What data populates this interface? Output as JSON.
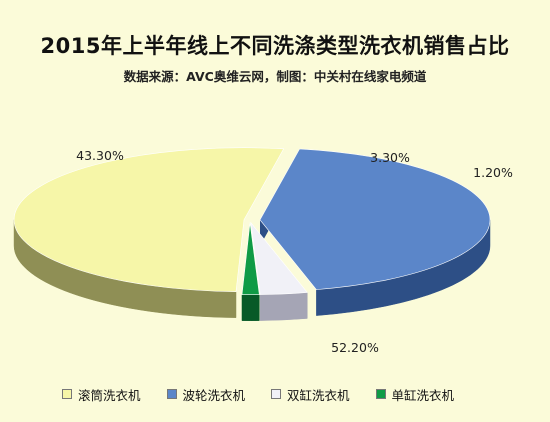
{
  "header": {
    "title": "2015年上半年线上不同洗涤类型洗衣机销售占比",
    "subtitle": "数据来源：AVC奥维云网，制图：中关村在线家电频道"
  },
  "chart_data": {
    "type": "pie",
    "style": "3d-exploded",
    "title": "2015年上半年线上不同洗涤类型洗衣机销售占比",
    "subtitle": "数据来源：AVC奥维云网，制图：中关村在线家电频道",
    "legend_position": "bottom",
    "slices": [
      {
        "name": "滚筒洗衣机",
        "value": 52.2,
        "label": "52.20%",
        "color": "#f6f6a8",
        "side_color": "#8f8f55"
      },
      {
        "name": "波轮洗衣机",
        "value": 43.3,
        "label": "43.30%",
        "color": "#5b86c9",
        "side_color": "#2d4f86"
      },
      {
        "name": "双缸洗衣机",
        "value": 3.3,
        "label": "3.30%",
        "color": "#f1f1f7",
        "side_color": "#a5a5b5"
      },
      {
        "name": "单缸洗衣机",
        "value": 1.2,
        "label": "1.20%",
        "color": "#0f9b45",
        "side_color": "#075a27"
      }
    ]
  }
}
